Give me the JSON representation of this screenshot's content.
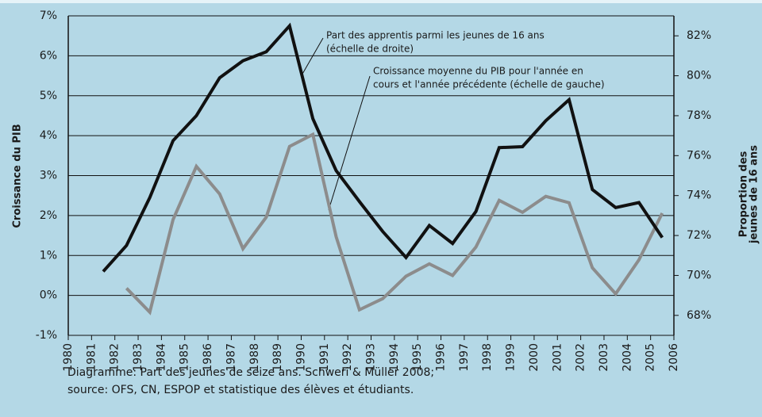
{
  "chart_data": {
    "type": "line",
    "yaxis_label": "Croissance du PIB",
    "y2axis_label": [
      "Proportion des",
      "jeunes de 16 ans"
    ],
    "annotations": [
      {
        "lines": [
          "Part des apprentis parmi les jeunes de 16 ans",
          "(échelle de droite)"
        ]
      },
      {
        "lines": [
          "Croissance moyenne du PIB pour l'année en",
          "cours et l'année précédente (échelle de gauche)"
        ]
      }
    ],
    "caption": [
      "Diagramme: Part des jeunes de seize ans. Schweri & Müller 2008;",
      "source: OFS, CN, ESPOP et statistique des élèves et étudiants."
    ],
    "xlim": [
      1980,
      2006
    ],
    "xticks": [
      1980,
      1981,
      1982,
      1983,
      1984,
      1985,
      1986,
      1987,
      1988,
      1989,
      1990,
      1991,
      1992,
      1993,
      1994,
      1995,
      1996,
      1997,
      1998,
      1999,
      2000,
      2001,
      2002,
      2003,
      2004,
      2005,
      2006
    ],
    "ylim": [
      -1,
      7
    ],
    "yticks": [
      {
        "value": -1,
        "label": "-1%"
      },
      {
        "value": 0,
        "label": "0%"
      },
      {
        "value": 1,
        "label": "1%"
      },
      {
        "value": 2,
        "label": "2%"
      },
      {
        "value": 3,
        "label": "3%"
      },
      {
        "value": 4,
        "label": "4%"
      },
      {
        "value": 5,
        "label": "5%"
      },
      {
        "value": 6,
        "label": "6%"
      },
      {
        "value": 7,
        "label": "7%"
      }
    ],
    "y2lim": [
      67,
      83
    ],
    "y2ticks": [
      {
        "value": 68,
        "label": "68%"
      },
      {
        "value": 70,
        "label": "70%"
      },
      {
        "value": 72,
        "label": "72%"
      },
      {
        "value": 74,
        "label": "74%"
      },
      {
        "value": 76,
        "label": "76%"
      },
      {
        "value": 78,
        "label": "78%"
      },
      {
        "value": 80,
        "label": "80%"
      },
      {
        "value": 82,
        "label": "82%"
      }
    ],
    "grid": true,
    "series": [
      {
        "color": "#111111",
        "axis": "y2",
        "x": [
          1981.5,
          1982.5,
          1983.5,
          1984.5,
          1985.5,
          1986.5,
          1987.5,
          1988.5,
          1989.5,
          1990.5,
          1991.5,
          1992.5,
          1993.5,
          1994.5,
          1995.5,
          1996.5,
          1997.5,
          1998.5,
          1999.5,
          2000.5,
          2001.5,
          2002.5,
          2003.5,
          2004.5,
          2005.5
        ],
        "values": [
          70.2,
          71.5,
          73.9,
          76.75,
          78,
          79.9,
          80.75,
          81.2,
          82.5,
          77.85,
          75.25,
          73.7,
          72.2,
          70.9,
          72.5,
          71.6,
          73.2,
          76.4,
          76.45,
          77.75,
          78.8,
          74.3,
          73.4,
          73.65,
          71.9
        ]
      },
      {
        "color": "#8c8c8c",
        "x": [
          1982.5,
          1983.5,
          1984.5,
          1985.5,
          1986.5,
          1987.5,
          1988.5,
          1989.5,
          1990.5,
          1991.5,
          1992.5,
          1993.5,
          1994.5,
          1995.5,
          1996.5,
          1997.5,
          1998.5,
          1999.5,
          2000.5,
          2001.5,
          2002.5,
          2003.5,
          2004.5,
          2005.5
        ],
        "values": [
          0.18,
          -0.42,
          1.9,
          3.23,
          2.54,
          1.17,
          1.96,
          3.73,
          4.03,
          1.47,
          -0.36,
          -0.08,
          0.48,
          0.79,
          0.5,
          1.21,
          2.38,
          2.08,
          2.48,
          2.32,
          0.69,
          0.04,
          0.89,
          2.06
        ]
      }
    ]
  }
}
